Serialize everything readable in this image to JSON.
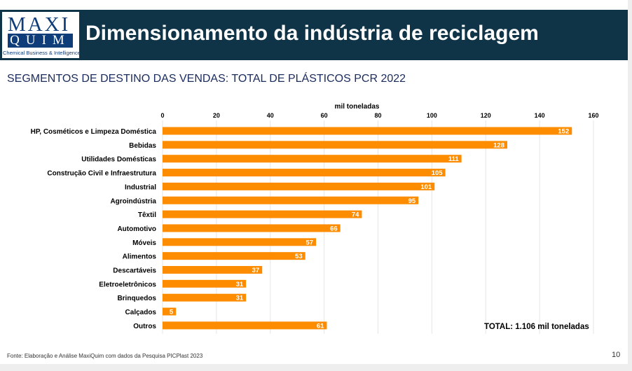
{
  "header": {
    "title": "Dimensionamento da indústria de reciclagem",
    "logo": {
      "line1": "MAXI",
      "line2": "QUIM",
      "tagline": "Chemical Business & Intelligence"
    }
  },
  "subtitle": "SEGMENTOS DE DESTINO DAS VENDAS: TOTAL DE PLÁSTICOS PCR 2022",
  "total_label": "TOTAL: 1.106 mil toneladas",
  "footer": {
    "source": "Fonte: Elaboração e Análise MaxiQuim com dados da Pesquisa PICPlast 2023",
    "page_number": "10"
  },
  "colors": {
    "bar": "#fd8c00",
    "header_bg": "#103447",
    "logo_blue": "#0f3d7a",
    "grid": "#e5e5e5"
  },
  "chart_data": {
    "type": "bar",
    "orientation": "horizontal",
    "xlabel": "mil toneladas",
    "axis_position": "top",
    "xlim": [
      0,
      160
    ],
    "ticks": [
      0,
      20,
      40,
      60,
      80,
      100,
      120,
      140,
      160
    ],
    "grid": true,
    "categories": [
      "HP, Cosméticos e Limpeza Doméstica",
      "Bebidas",
      "Utilidades Domésticas",
      "Construção Civil e Infraestrutura",
      "Industrial",
      "Agroindústria",
      "Têxtil",
      "Automotivo",
      "Móveis",
      "Alimentos",
      "Descartáveis",
      "Eletroeletrônicos",
      "Brinquedos",
      "Calçados",
      "Outros"
    ],
    "values": [
      152,
      128,
      111,
      105,
      101,
      95,
      74,
      66,
      57,
      53,
      37,
      31,
      31,
      5,
      61
    ]
  }
}
